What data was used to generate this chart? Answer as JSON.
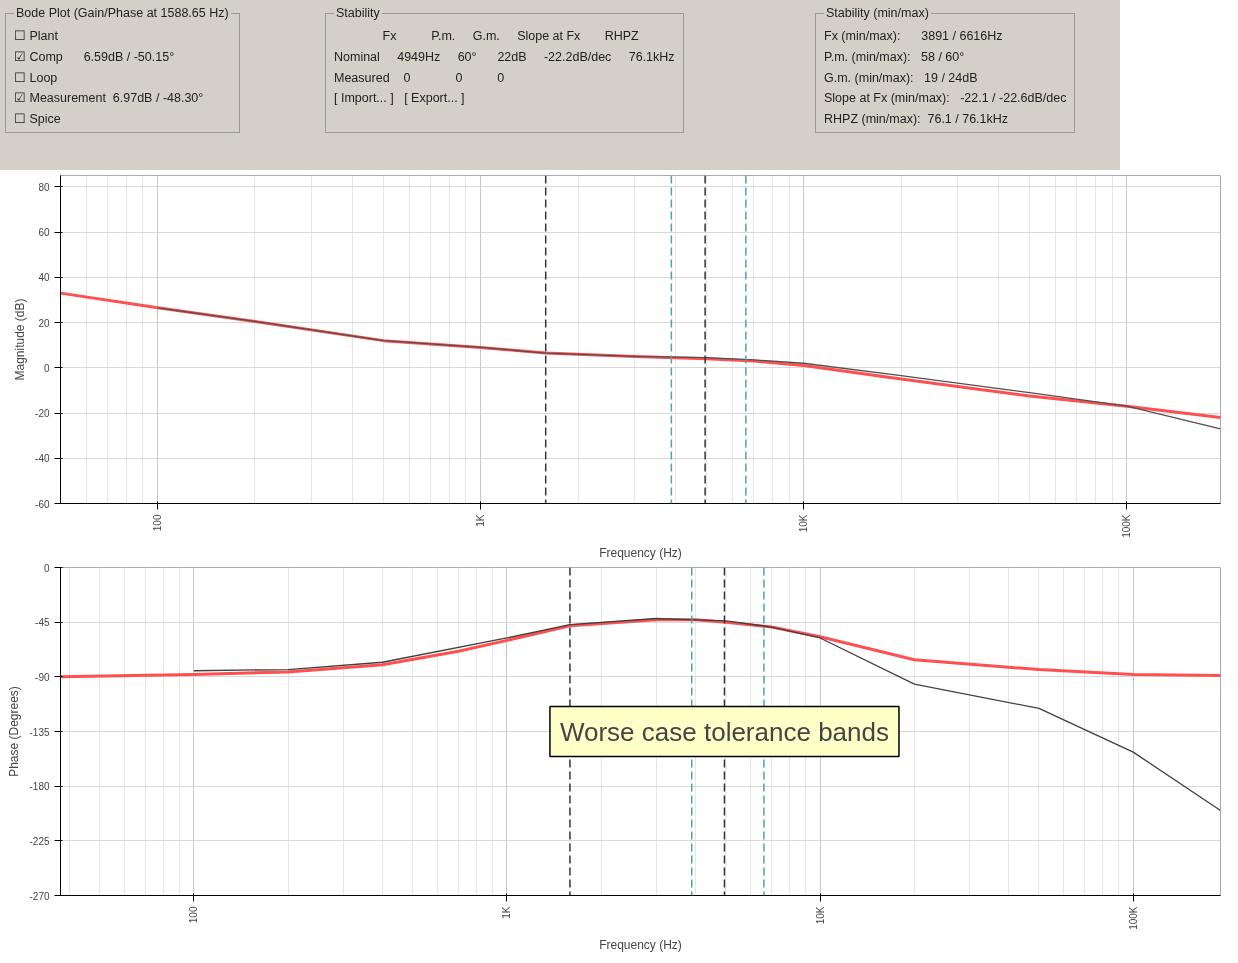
{
  "chart_data": [
    {
      "type": "other",
      "title": "Bode Plot (Gain/Phase at 1588.65 Hz)",
      "annotations": [
        "☐ Plant",
        "☑ Comp      6.59dB / -50.15°",
        "☐ Loop",
        "☑ Measurement  6.97dB / -48.30°",
        "☐ Spice"
      ]
    },
    {
      "type": "other",
      "title": "Stability",
      "annotations": [
        "              Fx          P.m.     G.m.     Slope at Fx       RHPZ",
        "Nominal     4949Hz     60°      22dB     -22.2dB/dec     76.1kHz",
        "Measured    0             0          0",
        "[ Import... ]   [ Export... ]"
      ]
    },
    {
      "type": "other",
      "title": "Stability (min/max)",
      "annotations": [
        "Fx (min/max):      3891 / 6616Hz",
        "P.m. (min/max):   58 / 60°",
        "G.m. (min/max):   19 / 24dB",
        "Slope at Fx (min/max):   -22.1 / -22.6dB/dec",
        "RHPZ (min/max):  76.1 / 76.1kHz"
      ]
    },
    {
      "type": "line",
      "xlabel": "Frequency (Hz)",
      "ylabel": "Magnitude (dB)",
      "log": "x",
      "grid": true,
      "xlim": [
        50,
        195000
      ],
      "ylim": [
        -60,
        85
      ],
      "xticks": [
        {
          "value": 100,
          "label": "100"
        },
        {
          "value": 1000,
          "label": "1K"
        },
        {
          "value": 10000,
          "label": "10K"
        },
        {
          "value": 100000,
          "label": "100K"
        }
      ],
      "yticks": [
        -60,
        -40,
        -20,
        0,
        20,
        40,
        60,
        80
      ],
      "ref_lines": [
        {
          "axis": "x",
          "value": 1588.65,
          "color": "#333333",
          "line_style": "dashed"
        },
        {
          "axis": "x",
          "value": 3891,
          "color": "#4fa3a8",
          "line_style": "dashed"
        },
        {
          "axis": "x",
          "value": 4949,
          "color": "#333333",
          "line_style": "dashed"
        },
        {
          "axis": "x",
          "value": 6616,
          "color": "#4fa3a8",
          "line_style": "dashed"
        }
      ],
      "series": [
        {
          "color": "#ff5050",
          "x": [
            50,
            100,
            200,
            500,
            1000,
            1588.65,
            3000,
            5000,
            7000,
            10000,
            20000,
            50000,
            100000,
            195000
          ],
          "values": [
            33,
            26.5,
            20.5,
            12,
            9,
            6.5,
            5,
            4,
            3,
            1,
            -5,
            -12.5,
            -17,
            -22
          ]
        },
        {
          "color": "#505050",
          "x": [
            100,
            200,
            500,
            1000,
            1588.65,
            3000,
            5000,
            7000,
            10000,
            20000,
            50000,
            100000,
            195000
          ],
          "values": [
            26.5,
            20.5,
            12,
            9,
            6.5,
            5,
            4.5,
            3.5,
            2,
            -3.5,
            -11,
            -17,
            -27
          ]
        }
      ]
    },
    {
      "type": "line",
      "xlabel": "Frequency (Hz)",
      "ylabel": "Phase (Degrees)",
      "log": "x",
      "grid": true,
      "xlim": [
        37.5,
        190000
      ],
      "ylim": [
        -270,
        0
      ],
      "xticks": [
        {
          "value": 100,
          "label": "100"
        },
        {
          "value": 1000,
          "label": "1K"
        },
        {
          "value": 10000,
          "label": "10K"
        },
        {
          "value": 100000,
          "label": "100K"
        }
      ],
      "yticks": [
        -270,
        -225,
        -180,
        -135,
        -90,
        -45,
        0
      ],
      "ref_lines": [
        {
          "axis": "x",
          "value": 1588.65,
          "color": "#333333",
          "line_style": "dashed"
        },
        {
          "axis": "x",
          "value": 3891,
          "color": "#4fa3a8",
          "line_style": "dashed"
        },
        {
          "axis": "x",
          "value": 4949,
          "color": "#333333",
          "line_style": "dashed"
        },
        {
          "axis": "x",
          "value": 6616,
          "color": "#4fa3a8",
          "line_style": "dashed"
        }
      ],
      "annotations": [
        {
          "text": "Worse case tolerance bands",
          "x": 4949,
          "y": -135
        }
      ],
      "series": [
        {
          "color": "#ff5050",
          "x": [
            37.5,
            100,
            200,
            400,
            700,
            1000,
            1588.65,
            3000,
            4000,
            5000,
            7000,
            10000,
            20000,
            50000,
            100000,
            190000
          ],
          "values": [
            -90,
            -88,
            -86,
            -80,
            -69,
            -60,
            -48,
            -43,
            -43,
            -45,
            -49,
            -57,
            -76,
            -84,
            -88,
            -89
          ]
        },
        {
          "color": "#404040",
          "x": [
            100,
            200,
            400,
            1000,
            1588.65,
            3000,
            5000,
            7000,
            10000,
            20000,
            50000,
            100000,
            190000
          ],
          "values": [
            -85,
            -84,
            -78,
            -58,
            -47,
            -42,
            -44,
            -49,
            -58,
            -96,
            -116,
            -152,
            -200
          ]
        }
      ]
    }
  ]
}
